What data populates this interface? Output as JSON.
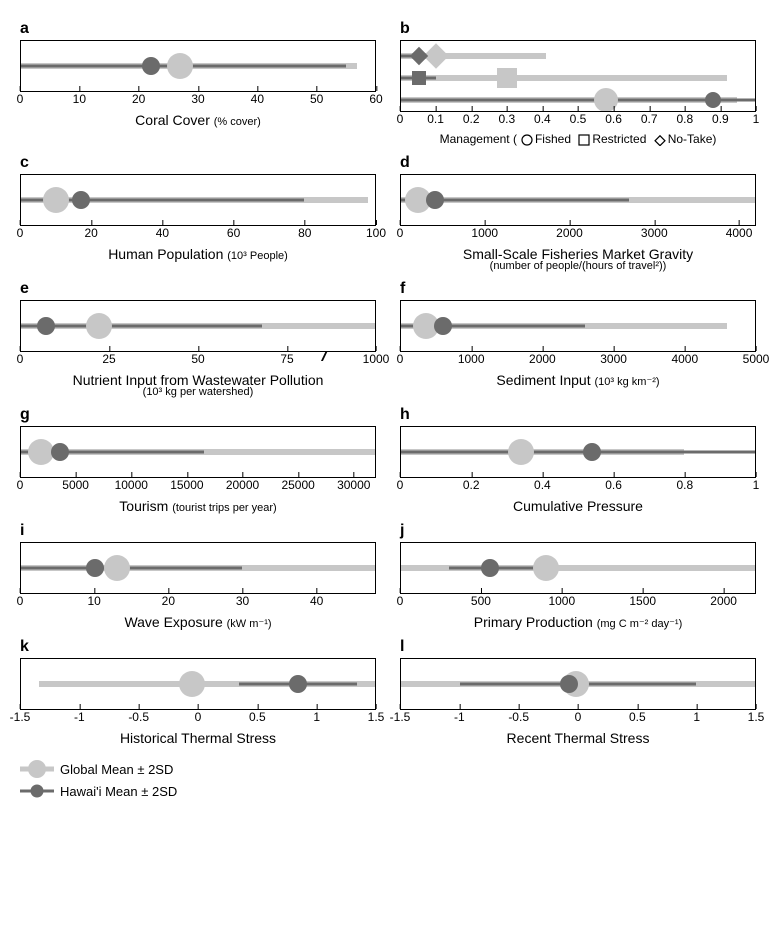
{
  "colors": {
    "light": "#c7c7c7",
    "dark": "#6b6b6b",
    "border": "#000000",
    "bg": "#ffffff"
  },
  "legend": {
    "global": "Global Mean ± 2SD",
    "hawaii": "Hawai'i Mean ± 2SD"
  },
  "mgmt_legend": {
    "prefix": "Management (",
    "fished": "Fished",
    "restricted": "Restricted",
    "notake": "No-Take",
    "suffix": ")"
  },
  "panels": {
    "a": {
      "letter": "a",
      "xlabel": "Coral Cover",
      "unit": "(% cover)",
      "xmin": 0,
      "xmax": 60,
      "ticks": [
        0,
        10,
        20,
        30,
        40,
        50,
        60
      ],
      "light_lo": 0,
      "light_hi": 57,
      "light_mean": 27,
      "dark_lo": 0,
      "dark_hi": 55,
      "dark_mean": 22
    },
    "b": {
      "letter": "b",
      "xmin": 0,
      "xmax": 1,
      "ticks": [
        0,
        0.1,
        0.2,
        0.3,
        0.4,
        0.5,
        0.6,
        0.7,
        0.8,
        0.9,
        1
      ],
      "rows": [
        {
          "shape": "diamond",
          "light_lo": 0,
          "light_hi": 0.41,
          "light_mean": 0.1,
          "dark_lo": 0,
          "dark_hi": 0.1,
          "dark_mean": 0.05
        },
        {
          "shape": "square",
          "light_lo": 0,
          "light_hi": 0.92,
          "light_mean": 0.3,
          "dark_lo": 0,
          "dark_hi": 0.1,
          "dark_mean": 0.05
        },
        {
          "shape": "circle",
          "light_lo": 0,
          "light_hi": 0.95,
          "light_mean": 0.58,
          "dark_lo": 0,
          "dark_hi": 1.0,
          "dark_mean": 0.88
        }
      ]
    },
    "c": {
      "letter": "c",
      "xlabel": "Human Population",
      "unit": "(10³ People)",
      "xmin": 0,
      "xmax": 100,
      "ticks": [
        0,
        20,
        40,
        60,
        80,
        100
      ],
      "light_lo": 0,
      "light_hi": 98,
      "light_mean": 10,
      "dark_lo": 0,
      "dark_hi": 80,
      "dark_mean": 17
    },
    "d": {
      "letter": "d",
      "xlabel": "Small-Scale Fisheries Market Gravity",
      "sub": "(number of people/(hours of travel²))",
      "xmin": 0,
      "xmax": 4200,
      "ticks": [
        0,
        1000,
        2000,
        3000,
        4000
      ],
      "light_lo": 0,
      "light_hi": 4200,
      "light_mean": 200,
      "dark_lo": 0,
      "dark_hi": 2700,
      "dark_mean": 400
    },
    "e": {
      "letter": "e",
      "xlabel": "Nutrient Input from Wastewater Pollution",
      "sub": "(10³ kg per watershed)",
      "xmin": 0,
      "xmax": 100,
      "ticks": [
        0,
        25,
        50,
        75,
        1000
      ],
      "tick_pos": [
        0,
        25,
        50,
        75,
        100
      ],
      "break_at": 85,
      "light_lo": 0,
      "light_hi": 100,
      "light_mean": 22,
      "dark_lo": 0,
      "dark_hi": 68,
      "dark_mean": 7
    },
    "f": {
      "letter": "f",
      "xlabel": "Sediment Input",
      "unit": "(10³ kg km⁻²)",
      "xmin": 0,
      "xmax": 5000,
      "ticks": [
        0,
        1000,
        2000,
        3000,
        4000,
        5000
      ],
      "light_lo": 0,
      "light_hi": 4600,
      "light_mean": 350,
      "dark_lo": 0,
      "dark_hi": 2600,
      "dark_mean": 600
    },
    "g": {
      "letter": "g",
      "xlabel": "Tourism",
      "unit": "(tourist trips per year)",
      "xmin": 0,
      "xmax": 32000,
      "ticks": [
        0,
        5000,
        10000,
        15000,
        20000,
        25000,
        30000
      ],
      "light_lo": 0,
      "light_hi": 32000,
      "light_mean": 1800,
      "dark_lo": 0,
      "dark_hi": 16500,
      "dark_mean": 3500
    },
    "h": {
      "letter": "h",
      "xlabel": "Cumulative Pressure",
      "xmin": 0,
      "xmax": 1,
      "ticks": [
        0,
        0.2,
        0.4,
        0.6,
        0.8,
        1
      ],
      "light_lo": 0,
      "light_hi": 0.8,
      "light_mean": 0.34,
      "dark_lo": 0,
      "dark_hi": 1.0,
      "dark_mean": 0.54
    },
    "i": {
      "letter": "i",
      "xlabel": "Wave Exposure",
      "unit": "(kW m⁻¹)",
      "xmin": 0,
      "xmax": 48,
      "ticks": [
        0,
        10,
        20,
        30,
        40
      ],
      "light_lo": 0,
      "light_hi": 48,
      "light_mean": 13,
      "dark_lo": 0,
      "dark_hi": 30,
      "dark_mean": 10
    },
    "j": {
      "letter": "j",
      "xlabel": "Primary Production",
      "unit": "(mg C m⁻² day⁻¹)",
      "xmin": 0,
      "xmax": 2200,
      "ticks": [
        0,
        500,
        1000,
        1500,
        2000
      ],
      "light_lo": 0,
      "light_hi": 2200,
      "light_mean": 900,
      "dark_lo": 300,
      "dark_hi": 900,
      "dark_mean": 550
    },
    "k": {
      "letter": "k",
      "xlabel": "Historical Thermal Stress",
      "xmin": -1.5,
      "xmax": 1.5,
      "ticks": [
        -1.5,
        -1,
        -0.5,
        0,
        0.5,
        1,
        1.5
      ],
      "light_lo": -1.35,
      "light_hi": 1.5,
      "light_mean": -0.05,
      "dark_lo": 0.35,
      "dark_hi": 1.35,
      "dark_mean": 0.85
    },
    "l": {
      "letter": "l",
      "xlabel": "Recent Thermal Stress",
      "xmin": -1.5,
      "xmax": 1.5,
      "ticks": [
        -1.5,
        -1,
        -0.5,
        0,
        0.5,
        1,
        1.5
      ],
      "light_lo": -1.5,
      "light_hi": 1.5,
      "light_mean": -0.02,
      "dark_lo": -1.0,
      "dark_hi": 1.0,
      "dark_mean": -0.08
    }
  }
}
